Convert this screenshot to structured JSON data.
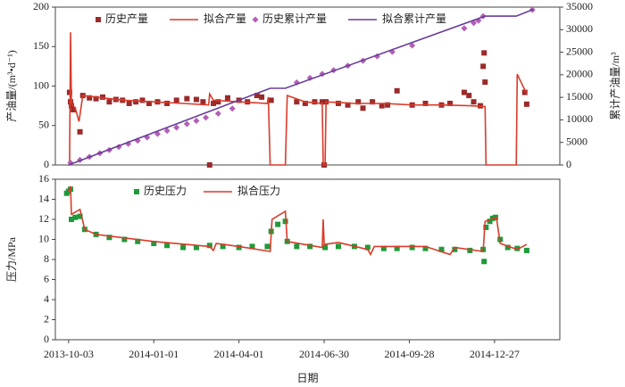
{
  "chart_data": [
    {
      "type": "line",
      "ylabel": "产油量/(m³•d⁻¹)",
      "y2label": "累计产油量/m³",
      "xlim": [
        "2013-09-19",
        "2015-03-06"
      ],
      "ylim": [
        0,
        200
      ],
      "yticks": [
        0,
        50,
        100,
        150,
        200
      ],
      "y2lim": [
        0,
        35000
      ],
      "y2ticks": [
        0,
        5000,
        10000,
        15000,
        20000,
        25000,
        30000,
        35000
      ],
      "series": [
        {
          "name": "历史产量",
          "color": "#9b2a2a",
          "kind": "square",
          "x": [
            "2013-10-04",
            "2013-10-05",
            "2013-10-06",
            "2013-10-08",
            "2013-10-15",
            "2013-10-18",
            "2013-10-25",
            "2013-11-01",
            "2013-11-08",
            "2013-11-15",
            "2013-11-22",
            "2013-11-29",
            "2013-12-06",
            "2013-12-13",
            "2013-12-20",
            "2013-12-27",
            "2014-01-05",
            "2014-01-15",
            "2014-01-25",
            "2014-02-05",
            "2014-02-15",
            "2014-02-22",
            "2014-03-01",
            "2014-03-05",
            "2014-03-10",
            "2014-03-20",
            "2014-04-01",
            "2014-04-10",
            "2014-04-20",
            "2014-04-25",
            "2014-05-05",
            "2014-06-01",
            "2014-06-10",
            "2014-06-20",
            "2014-06-28",
            "2014-06-30",
            "2014-07-02",
            "2014-07-15",
            "2014-07-25",
            "2014-08-05",
            "2014-08-10",
            "2014-08-20",
            "2014-08-30",
            "2014-09-05",
            "2014-09-15",
            "2014-10-01",
            "2014-10-15",
            "2014-11-01",
            "2014-11-10",
            "2014-11-25",
            "2014-11-30",
            "2014-12-05",
            "2014-12-12",
            "2014-12-15",
            "2014-12-16",
            "2014-12-17",
            "2015-01-28",
            "2015-01-30"
          ],
          "values": [
            92,
            80,
            75,
            70,
            42,
            88,
            85,
            84,
            86,
            80,
            83,
            82,
            78,
            80,
            82,
            78,
            80,
            78,
            82,
            84,
            83,
            80,
            0,
            78,
            80,
            85,
            82,
            80,
            88,
            86,
            82,
            80,
            78,
            80,
            80,
            0,
            80,
            78,
            76,
            80,
            72,
            80,
            75,
            76,
            94,
            76,
            78,
            76,
            78,
            92,
            88,
            80,
            75,
            125,
            142,
            105,
            92,
            77
          ]
        },
        {
          "name": "拟合产量",
          "color": "#d93b2b",
          "kind": "line",
          "x": [
            "2013-10-03",
            "2013-10-04",
            "2013-10-05",
            "2013-10-06",
            "2013-10-10",
            "2013-10-14",
            "2013-10-18",
            "2013-11-01",
            "2013-12-01",
            "2014-01-01",
            "2014-02-01",
            "2014-02-28",
            "2014-03-01",
            "2014-03-05",
            "2014-04-01",
            "2014-05-01",
            "2014-05-02",
            "2014-05-04",
            "2014-05-20",
            "2014-05-22",
            "2014-06-10",
            "2014-06-28",
            "2014-06-29",
            "2014-07-01",
            "2014-07-02",
            "2014-08-01",
            "2014-09-01",
            "2014-10-01",
            "2014-11-01",
            "2014-12-01",
            "2014-12-17",
            "2014-12-18",
            "2015-01-19",
            "2015-01-20",
            "2015-01-30"
          ],
          "values": [
            0,
            0,
            168,
            78,
            72,
            55,
            88,
            86,
            82,
            80,
            78,
            76,
            90,
            82,
            80,
            78,
            86,
            0,
            0,
            88,
            80,
            78,
            0,
            0,
            80,
            78,
            78,
            76,
            76,
            75,
            74,
            0,
            0,
            115,
            90
          ]
        },
        {
          "name": "历史累计产量",
          "color": "#b25fb5",
          "kind": "diamond",
          "axis": "y2",
          "x": [
            "2013-10-05",
            "2013-10-15",
            "2013-10-25",
            "2013-11-05",
            "2013-11-15",
            "2013-11-25",
            "2013-12-05",
            "2013-12-15",
            "2013-12-25",
            "2014-01-05",
            "2014-01-15",
            "2014-01-25",
            "2014-02-05",
            "2014-02-15",
            "2014-02-25",
            "2014-03-10",
            "2014-03-25",
            "2014-06-01",
            "2014-06-15",
            "2014-06-28",
            "2014-07-10",
            "2014-07-25",
            "2014-08-10",
            "2014-08-25",
            "2014-09-10",
            "2014-10-01",
            "2014-11-25",
            "2014-12-05",
            "2014-12-10",
            "2014-12-15",
            "2015-02-05"
          ],
          "values": [
            500,
            1100,
            1800,
            2600,
            3300,
            4000,
            4700,
            5400,
            6100,
            6900,
            7600,
            8300,
            9100,
            9800,
            10500,
            11400,
            12500,
            18300,
            19300,
            20200,
            21000,
            22000,
            23100,
            24100,
            25100,
            26500,
            30300,
            31500,
            32000,
            33000,
            34400
          ]
        },
        {
          "name": "拟合累计产量",
          "color": "#6a3d9a",
          "kind": "line",
          "axis": "y2",
          "x": [
            "2013-10-03",
            "2014-05-04",
            "2014-05-20",
            "2014-12-17",
            "2015-01-19",
            "2015-02-06"
          ],
          "values": [
            0,
            17000,
            17000,
            33000,
            33000,
            34500
          ]
        }
      ]
    },
    {
      "type": "line",
      "ylabel": "压力/MPa",
      "xlabel": "日期",
      "xlim": [
        "2013-09-19",
        "2015-03-06"
      ],
      "xticks": [
        "2013-10-03",
        "2014-01-01",
        "2014-04-01",
        "2014-06-30",
        "2014-09-28",
        "2014-12-27"
      ],
      "ylim": [
        0,
        16
      ],
      "yticks": [
        0,
        2,
        4,
        6,
        8,
        10,
        12,
        14,
        16
      ],
      "series": [
        {
          "name": "历史压力",
          "color": "#1f9a3a",
          "kind": "square",
          "x": [
            "2013-10-01",
            "2013-10-03",
            "2013-10-05",
            "2013-10-06",
            "2013-10-10",
            "2013-10-15",
            "2013-10-20",
            "2013-11-01",
            "2013-11-15",
            "2013-12-01",
            "2013-12-15",
            "2014-01-01",
            "2014-01-15",
            "2014-02-01",
            "2014-02-15",
            "2014-03-01",
            "2014-03-15",
            "2014-04-01",
            "2014-04-15",
            "2014-05-01",
            "2014-05-05",
            "2014-05-12",
            "2014-05-20",
            "2014-05-22",
            "2014-06-01",
            "2014-06-15",
            "2014-07-01",
            "2014-07-15",
            "2014-08-01",
            "2014-08-15",
            "2014-09-01",
            "2014-09-15",
            "2014-10-01",
            "2014-10-15",
            "2014-11-01",
            "2014-11-15",
            "2014-12-01",
            "2014-12-15",
            "2014-12-16",
            "2014-12-18",
            "2014-12-22",
            "2014-12-25",
            "2014-12-28",
            "2015-01-02",
            "2015-01-10",
            "2015-01-20",
            "2015-01-30"
          ],
          "values": [
            14.6,
            14.8,
            15,
            12,
            12.2,
            12.3,
            11,
            10.5,
            10.2,
            10,
            9.8,
            9.6,
            9.4,
            9.2,
            9.2,
            9.4,
            9.3,
            9.2,
            9.3,
            9.3,
            10.8,
            11.5,
            11.8,
            9.8,
            9.3,
            9.3,
            9.2,
            9.3,
            9.3,
            9.2,
            9.1,
            9.1,
            9.2,
            9.1,
            9,
            9,
            8.9,
            9,
            7.8,
            11.2,
            11.8,
            12.1,
            12.2,
            10,
            9.2,
            9.1,
            8.9
          ]
        },
        {
          "name": "拟合压力",
          "color": "#d93b2b",
          "kind": "line",
          "x": [
            "2013-10-03",
            "2013-10-05",
            "2013-10-06",
            "2013-10-15",
            "2013-10-20",
            "2013-11-01",
            "2014-01-01",
            "2014-03-01",
            "2014-03-05",
            "2014-03-08",
            "2014-04-01",
            "2014-05-04",
            "2014-05-06",
            "2014-05-20",
            "2014-05-22",
            "2014-06-28",
            "2014-06-29",
            "2014-06-30",
            "2014-07-15",
            "2014-08-15",
            "2014-08-18",
            "2014-08-22",
            "2014-10-15",
            "2014-11-10",
            "2014-11-15",
            "2014-12-15",
            "2014-12-17",
            "2014-12-29",
            "2015-01-02",
            "2015-01-20",
            "2015-01-30"
          ],
          "values": [
            14.8,
            15.3,
            12.5,
            13,
            11,
            10.5,
            9.8,
            9.3,
            8.9,
            9.6,
            9.3,
            8.8,
            12,
            12.8,
            9.8,
            9.2,
            12,
            9.5,
            9.7,
            9,
            8.5,
            9.3,
            9.3,
            8.5,
            9.2,
            8.8,
            11.8,
            12.2,
            9.6,
            9,
            9.5
          ]
        }
      ]
    }
  ]
}
